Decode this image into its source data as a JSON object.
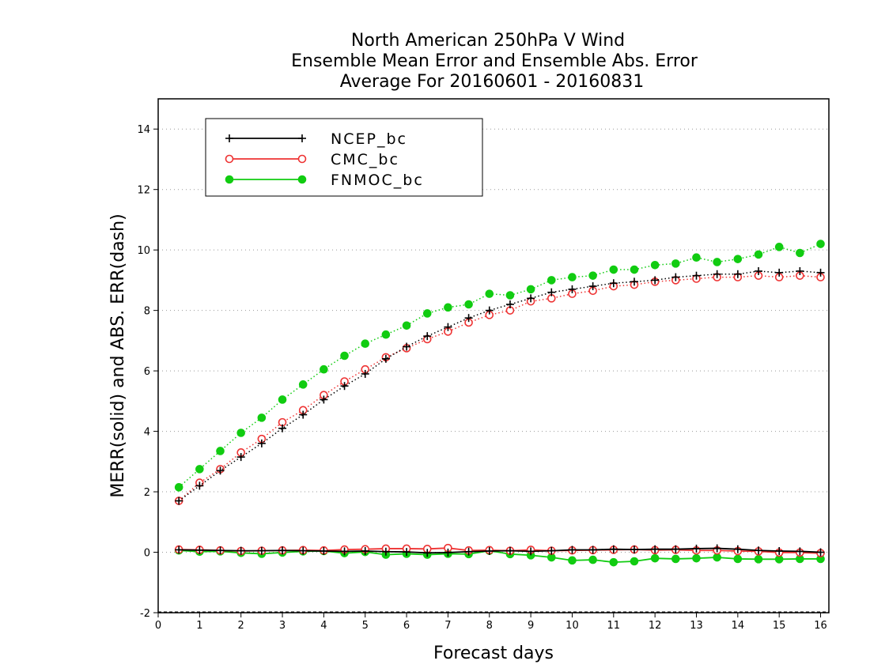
{
  "chart_data": {
    "type": "line",
    "title_lines": [
      "North American 250hPa V Wind",
      "Ensemble Mean Error and Ensemble Abs. Error",
      "Average For 20160601 - 20160831"
    ],
    "xlabel": "Forecast days",
    "ylabel": "MERR(solid) and ABS. ERR(dash)",
    "xlim": [
      0,
      16.2
    ],
    "ylim": [
      -2,
      15
    ],
    "xticks": [
      0,
      1,
      2,
      3,
      4,
      5,
      6,
      7,
      8,
      9,
      10,
      11,
      12,
      13,
      14,
      15,
      16
    ],
    "yticks": [
      -2,
      0,
      2,
      4,
      6,
      8,
      10,
      12,
      14
    ],
    "grid": "horizontal-dotted",
    "legend_position": "top-left",
    "x": [
      0.5,
      1,
      1.5,
      2,
      2.5,
      3,
      3.5,
      4,
      4.5,
      5,
      5.5,
      6,
      6.5,
      7,
      7.5,
      8,
      8.5,
      9,
      9.5,
      10,
      10.5,
      11,
      11.5,
      12,
      12.5,
      13,
      13.5,
      14,
      14.5,
      15,
      15.5,
      16
    ],
    "series": [
      {
        "name": "NCEP_bc",
        "color": "#000000",
        "marker": "plus",
        "abs_error": [
          1.7,
          2.2,
          2.7,
          3.15,
          3.6,
          4.1,
          4.55,
          5.05,
          5.5,
          5.9,
          6.4,
          6.8,
          7.15,
          7.45,
          7.75,
          8.0,
          8.2,
          8.4,
          8.6,
          8.7,
          8.8,
          8.9,
          8.95,
          9.0,
          9.1,
          9.15,
          9.2,
          9.2,
          9.3,
          9.25,
          9.3,
          9.25
        ],
        "mean_error": [
          0.08,
          0.07,
          0.06,
          0.05,
          0.05,
          0.06,
          0.05,
          0.04,
          0.03,
          0.04,
          0.02,
          0.01,
          -0.02,
          -0.01,
          0.02,
          0.04,
          0.05,
          0.03,
          0.05,
          0.08,
          0.08,
          0.1,
          0.09,
          0.1,
          0.1,
          0.12,
          0.13,
          0.1,
          0.06,
          0.04,
          0.03,
          0.0
        ]
      },
      {
        "name": "CMC_bc",
        "color": "#ee3333",
        "marker": "open-circle",
        "abs_error": [
          1.7,
          2.3,
          2.75,
          3.3,
          3.75,
          4.3,
          4.7,
          5.2,
          5.65,
          6.05,
          6.45,
          6.75,
          7.05,
          7.3,
          7.6,
          7.85,
          8.0,
          8.3,
          8.4,
          8.55,
          8.65,
          8.8,
          8.85,
          8.95,
          9.0,
          9.05,
          9.1,
          9.1,
          9.15,
          9.1,
          9.15,
          9.1
        ],
        "mean_error": [
          0.09,
          0.08,
          0.06,
          0.04,
          0.05,
          0.06,
          0.07,
          0.06,
          0.09,
          0.1,
          0.12,
          0.12,
          0.11,
          0.14,
          0.06,
          0.07,
          0.05,
          0.08,
          0.05,
          0.06,
          0.07,
          0.08,
          0.09,
          0.07,
          0.08,
          0.06,
          0.06,
          0.04,
          0.03,
          -0.01,
          -0.01,
          -0.03
        ]
      },
      {
        "name": "FNMOC_bc",
        "color": "#11cc11",
        "marker": "filled-circle",
        "abs_error": [
          2.15,
          2.75,
          3.35,
          3.95,
          4.45,
          5.05,
          5.55,
          6.05,
          6.5,
          6.9,
          7.2,
          7.5,
          7.9,
          8.1,
          8.2,
          8.55,
          8.5,
          8.7,
          9.0,
          9.1,
          9.15,
          9.35,
          9.35,
          9.5,
          9.55,
          9.75,
          9.6,
          9.7,
          9.85,
          10.1,
          9.9,
          10.2
        ],
        "mean_error": [
          0.06,
          0.02,
          0.03,
          -0.02,
          -0.05,
          -0.01,
          0.03,
          0.04,
          -0.03,
          0.01,
          -0.08,
          -0.05,
          -0.08,
          -0.05,
          -0.06,
          0.05,
          -0.06,
          -0.1,
          -0.17,
          -0.27,
          -0.25,
          -0.33,
          -0.3,
          -0.2,
          -0.22,
          -0.2,
          -0.17,
          -0.22,
          -0.23,
          -0.23,
          -0.22,
          -0.22
        ]
      }
    ]
  }
}
